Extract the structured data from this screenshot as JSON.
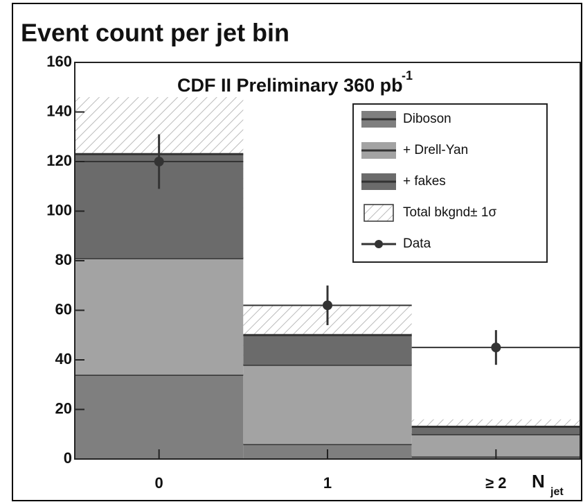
{
  "chart_data": {
    "type": "bar",
    "stacked": true,
    "title": "Event count per jet bin",
    "annotation": "CDF II Preliminary 360 pb",
    "annotation_sup": "-1",
    "xlabel": "N",
    "xlabel_sub": "jet",
    "categories": [
      "0",
      "1",
      "≥ 2"
    ],
    "series": [
      {
        "name": "Diboson",
        "color": "#7f7f7f",
        "values": [
          34,
          6,
          1
        ]
      },
      {
        "name": "+ Drell-Yan",
        "color": "#a3a3a3",
        "values": [
          47,
          32,
          9
        ]
      },
      {
        "name": "+ fakes",
        "color": "#6b6b6b",
        "values": [
          42,
          12,
          3
        ]
      }
    ],
    "band": {
      "name": "Total bkgnd± 1σ",
      "errors": [
        23,
        12,
        3
      ]
    },
    "data": {
      "name": "Data",
      "color": "#333333",
      "values": [
        120,
        62,
        45
      ],
      "errors": [
        11,
        8,
        7
      ]
    },
    "ylim": [
      0,
      160
    ],
    "yticks": [
      0,
      20,
      40,
      60,
      80,
      100,
      120,
      140,
      160
    ]
  }
}
